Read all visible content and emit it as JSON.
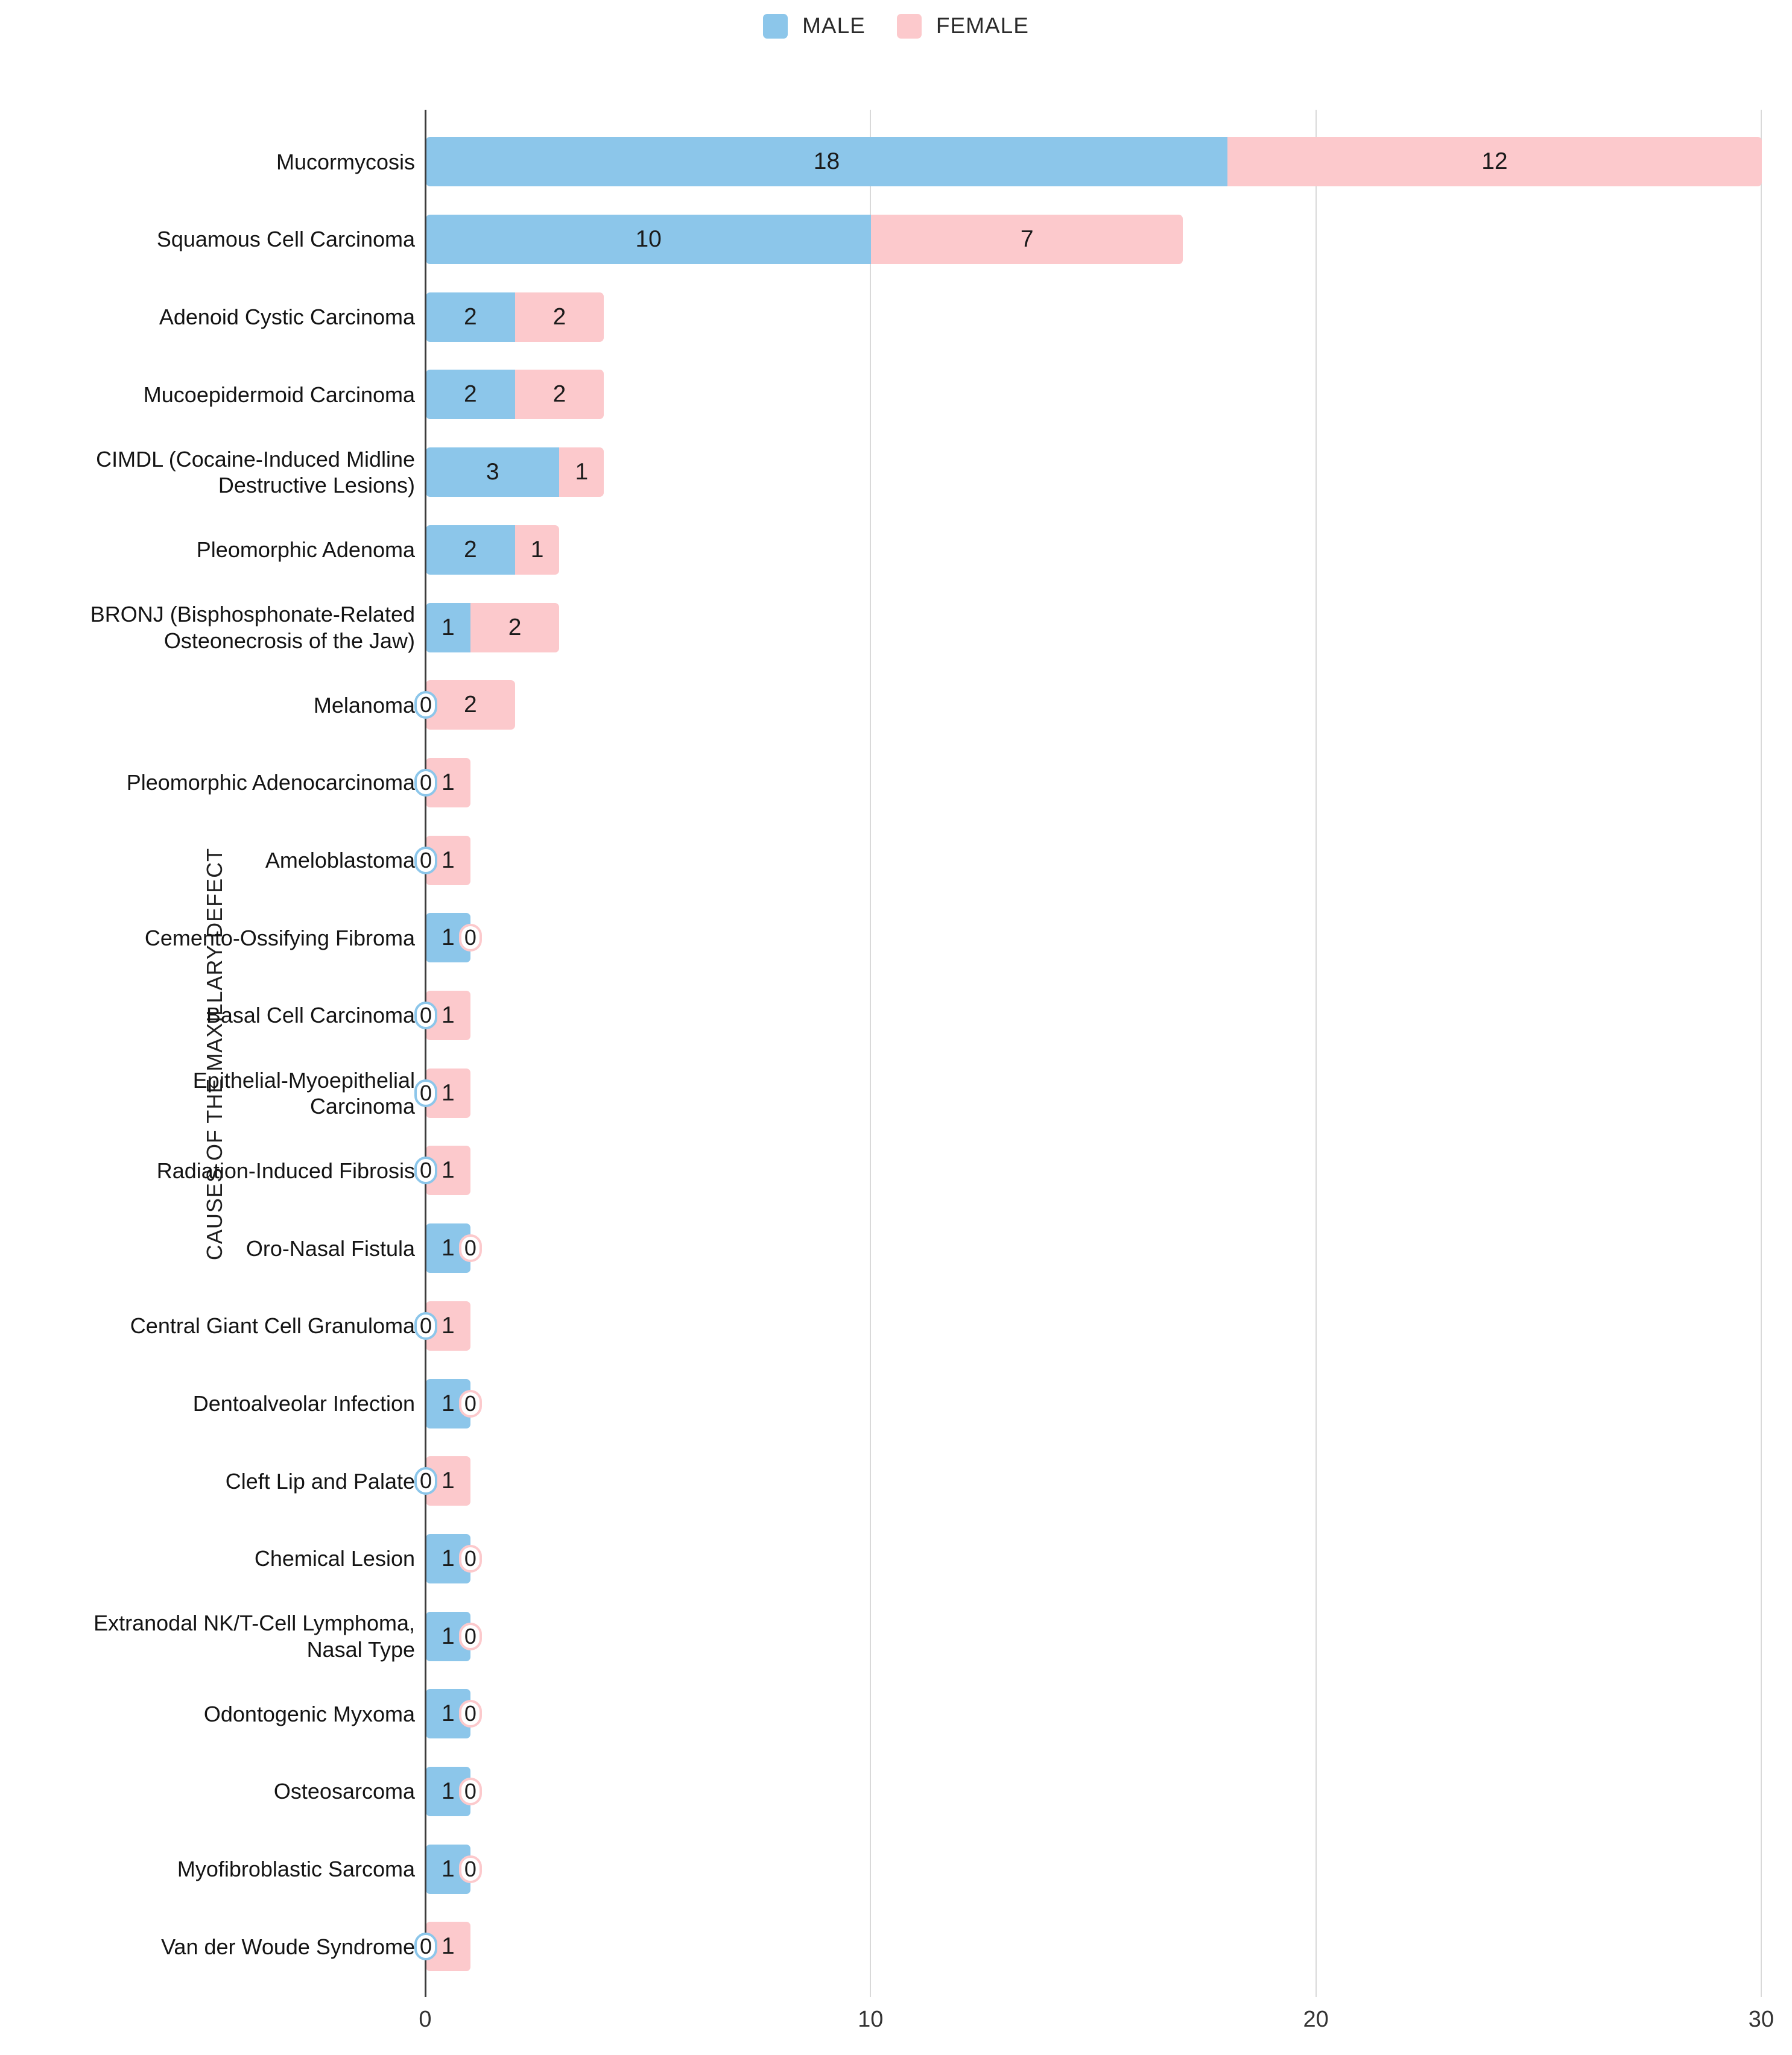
{
  "legend": {
    "items": [
      {
        "label": "MALE",
        "color": "#8CC6EA"
      },
      {
        "label": "FEMALE",
        "color": "#FCC9CC"
      }
    ]
  },
  "y_axis_title": "CAUSES OF THE MAXILLARY DEFECT",
  "colors": {
    "male": "#8CC6EA",
    "female": "#FCC9CC",
    "grid": "#d9d9d9",
    "axis": "#3c3c3c",
    "value_text": "#1b1b1b"
  },
  "chart_data": {
    "type": "bar",
    "orientation": "horizontal",
    "stacked": true,
    "title": "",
    "xlabel": "",
    "ylabel": "CAUSES OF THE MAXILLARY DEFECT",
    "xlim": [
      0,
      30
    ],
    "x_ticks": [
      0,
      10,
      20,
      30
    ],
    "grid": true,
    "legend_position": "top",
    "categories": [
      "Mucormycosis",
      "Squamous Cell Carcinoma",
      "Adenoid Cystic Carcinoma",
      "Mucoepidermoid Carcinoma",
      "CIMDL (Cocaine-Induced Midline\nDestructive Lesions)",
      "Pleomorphic Adenoma",
      "BRONJ (Bisphosphonate-Related\nOsteonecrosis of the Jaw)",
      "Melanoma",
      "Pleomorphic Adenocarcinoma",
      "Ameloblastoma",
      "Cemento-Ossifying Fibroma",
      "Basal Cell Carcinoma",
      "Epithelial-Myoepithelial\nCarcinoma",
      "Radiation-Induced Fibrosis",
      "Oro-Nasal Fistula",
      "Central Giant Cell Granuloma",
      "Dentoalveolar Infection",
      "Cleft Lip and Palate",
      "Chemical Lesion",
      "Extranodal NK/T-Cell Lymphoma,\nNasal Type",
      "Odontogenic Myxoma",
      "Osteosarcoma",
      "Myofibroblastic Sarcoma",
      "Van der Woude Syndrome"
    ],
    "series": [
      {
        "name": "MALE",
        "color": "#8CC6EA",
        "values": [
          18,
          10,
          2,
          2,
          3,
          2,
          1,
          0,
          0,
          0,
          1,
          0,
          0,
          0,
          1,
          0,
          1,
          0,
          1,
          1,
          1,
          1,
          1,
          0
        ]
      },
      {
        "name": "FEMALE",
        "color": "#FCC9CC",
        "values": [
          12,
          7,
          2,
          2,
          1,
          1,
          2,
          2,
          1,
          1,
          0,
          1,
          1,
          1,
          0,
          1,
          0,
          1,
          0,
          0,
          0,
          0,
          0,
          1
        ]
      }
    ]
  }
}
